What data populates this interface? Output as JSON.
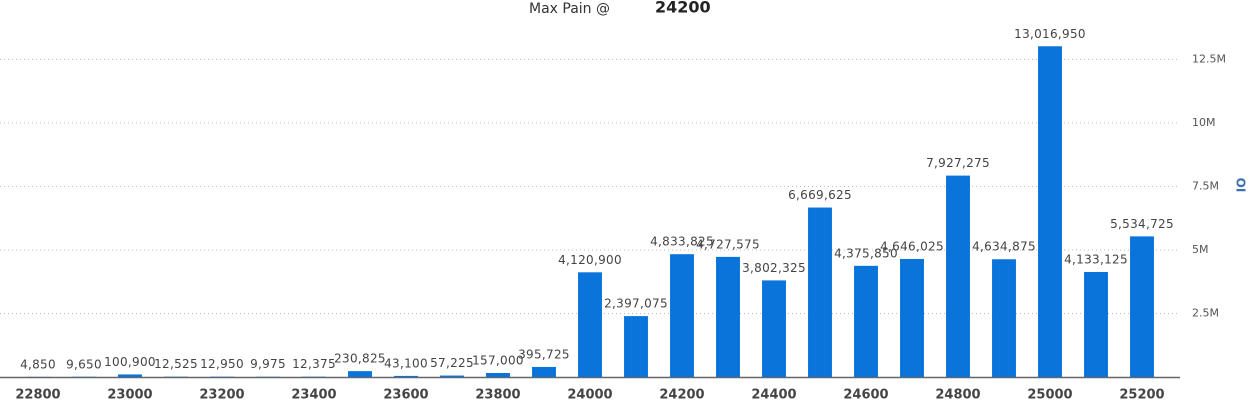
{
  "chart_data": {
    "type": "bar",
    "title": "Max Pain @",
    "max_pain": "24200",
    "y_axis_label": "OI",
    "categories": [
      "22800",
      null,
      "23000",
      null,
      "23200",
      null,
      "23400",
      null,
      "23600",
      null,
      "23800",
      null,
      "24000",
      null,
      "24200",
      null,
      "24400",
      null,
      "24600",
      null,
      "24800",
      null,
      "25000",
      null,
      "25200"
    ],
    "values": [
      4850,
      9650,
      100900,
      12525,
      12950,
      9975,
      12375,
      230825,
      43100,
      57225,
      157000,
      395725,
      4120900,
      2397075,
      4833825,
      4727575,
      3802325,
      6669625,
      4375850,
      4646025,
      7927275,
      4634875,
      13016950,
      4133125,
      5534725
    ],
    "value_labels": [
      "4,850",
      "9,650",
      "100,900",
      "12,525",
      "12,950",
      "9,975",
      "12,375",
      "230,825",
      "43,100",
      "57,225",
      "157,000",
      "395,725",
      "4,120,900",
      "2,397,075",
      "4,833,825",
      "4,727,575",
      "3,802,325",
      "6,669,625",
      "4,375,850",
      "4,646,025",
      "7,927,275",
      "4,634,875",
      "13,016,950",
      "4,133,125",
      "5,534,725"
    ],
    "color": "#0a74da",
    "ylim": [
      0,
      13500000
    ],
    "yticks": [
      {
        "value": 2500000,
        "label": "2.5M"
      },
      {
        "value": 5000000,
        "label": "5M"
      },
      {
        "value": 7500000,
        "label": "7.5M"
      },
      {
        "value": 10000000,
        "label": "10M"
      },
      {
        "value": 12500000,
        "label": "12.5M"
      }
    ],
    "grid": true
  }
}
